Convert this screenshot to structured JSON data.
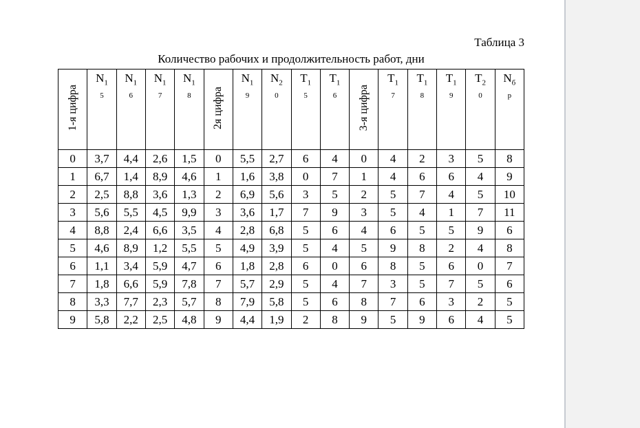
{
  "page": {
    "table_label": "Таблица 3",
    "title": "Количество рабочих и продолжительность работ, дни"
  },
  "colors": {
    "page_background": "#ffffff",
    "outside_background": "#f2f2f2",
    "page_edge": "#c6cad1",
    "table_border": "#000000",
    "text": "#000000"
  },
  "table": {
    "columns": [
      {
        "id": "first-digit",
        "kind": "vertical",
        "label": "1-я цифра"
      },
      {
        "id": "n15",
        "kind": "split-sub",
        "letter": "N",
        "sub_line1": "1",
        "sub_line2": "5"
      },
      {
        "id": "n16",
        "kind": "split-sub",
        "letter": "N",
        "sub_line1": "1",
        "sub_line2": "6"
      },
      {
        "id": "n17",
        "kind": "split-sub",
        "letter": "N",
        "sub_line1": "1",
        "sub_line2": "7"
      },
      {
        "id": "n18",
        "kind": "split-sub",
        "letter": "N",
        "sub_line1": "1",
        "sub_line2": "8"
      },
      {
        "id": "second-digit",
        "kind": "vertical",
        "label": "2я цифра"
      },
      {
        "id": "n19",
        "kind": "split-sub",
        "letter": "N",
        "sub_line1": "1",
        "sub_line2": "9"
      },
      {
        "id": "n20",
        "kind": "split-sub",
        "letter": "N",
        "sub_line1": "2",
        "sub_line2": "0"
      },
      {
        "id": "t15",
        "kind": "split-sub",
        "letter": "T",
        "sub_line1": "1",
        "sub_line2": "5"
      },
      {
        "id": "t16",
        "kind": "split-sub",
        "letter": "T",
        "sub_line1": "1",
        "sub_line2": "6"
      },
      {
        "id": "third-digit",
        "kind": "vertical",
        "label": "3-я цифра"
      },
      {
        "id": "t17",
        "kind": "split-sub",
        "letter": "T",
        "sub_line1": "1",
        "sub_line2": "7"
      },
      {
        "id": "t18",
        "kind": "split-sub",
        "letter": "T",
        "sub_line1": "1",
        "sub_line2": "8"
      },
      {
        "id": "t19",
        "kind": "split-sub",
        "letter": "T",
        "sub_line1": "1",
        "sub_line2": "9"
      },
      {
        "id": "t20",
        "kind": "split-sub",
        "letter": "T",
        "sub_line1": "2",
        "sub_line2": "0"
      },
      {
        "id": "nbr",
        "kind": "split-sub",
        "letter": "N",
        "sub_line1": "б",
        "sub_line2": "р"
      }
    ],
    "rows": [
      [
        "0",
        "3,7",
        "4,4",
        "2,6",
        "1,5",
        "0",
        "5,5",
        "2,7",
        "6",
        "4",
        "0",
        "4",
        "2",
        "3",
        "5",
        "8"
      ],
      [
        "1",
        "6,7",
        "1,4",
        "8,9",
        "4,6",
        "1",
        "1,6",
        "3,8",
        "0",
        "7",
        "1",
        "4",
        "6",
        "6",
        "4",
        "9"
      ],
      [
        "2",
        "2,5",
        "8,8",
        "3,6",
        "1,3",
        "2",
        "6,9",
        "5,6",
        "3",
        "5",
        "2",
        "5",
        "7",
        "4",
        "5",
        "10"
      ],
      [
        "3",
        "5,6",
        "5,5",
        "4,5",
        "9,9",
        "3",
        "3,6",
        "1,7",
        "7",
        "9",
        "3",
        "5",
        "4",
        "1",
        "7",
        "11"
      ],
      [
        "4",
        "8,8",
        "2,4",
        "6,6",
        "3,5",
        "4",
        "2,8",
        "6,8",
        "5",
        "6",
        "4",
        "6",
        "5",
        "5",
        "9",
        "6"
      ],
      [
        "5",
        "4,6",
        "8,9",
        "1,2",
        "5,5",
        "5",
        "4,9",
        "3,9",
        "5",
        "4",
        "5",
        "9",
        "8",
        "2",
        "4",
        "8"
      ],
      [
        "6",
        "1,1",
        "3,4",
        "5,9",
        "4,7",
        "6",
        "1,8",
        "2,8",
        "6",
        "0",
        "6",
        "8",
        "5",
        "6",
        "0",
        "7"
      ],
      [
        "7",
        "1,8",
        "6,6",
        "5,9",
        "7,8",
        "7",
        "5,7",
        "2,9",
        "5",
        "4",
        "7",
        "3",
        "5",
        "7",
        "5",
        "6"
      ],
      [
        "8",
        "3,3",
        "7,7",
        "2,3",
        "5,7",
        "8",
        "7,9",
        "5,8",
        "5",
        "6",
        "8",
        "7",
        "6",
        "3",
        "2",
        "5"
      ],
      [
        "9",
        "5,8",
        "2,2",
        "2,5",
        "4,8",
        "9",
        "4,4",
        "1,9",
        "2",
        "8",
        "9",
        "5",
        "9",
        "6",
        "4",
        "5"
      ]
    ]
  }
}
